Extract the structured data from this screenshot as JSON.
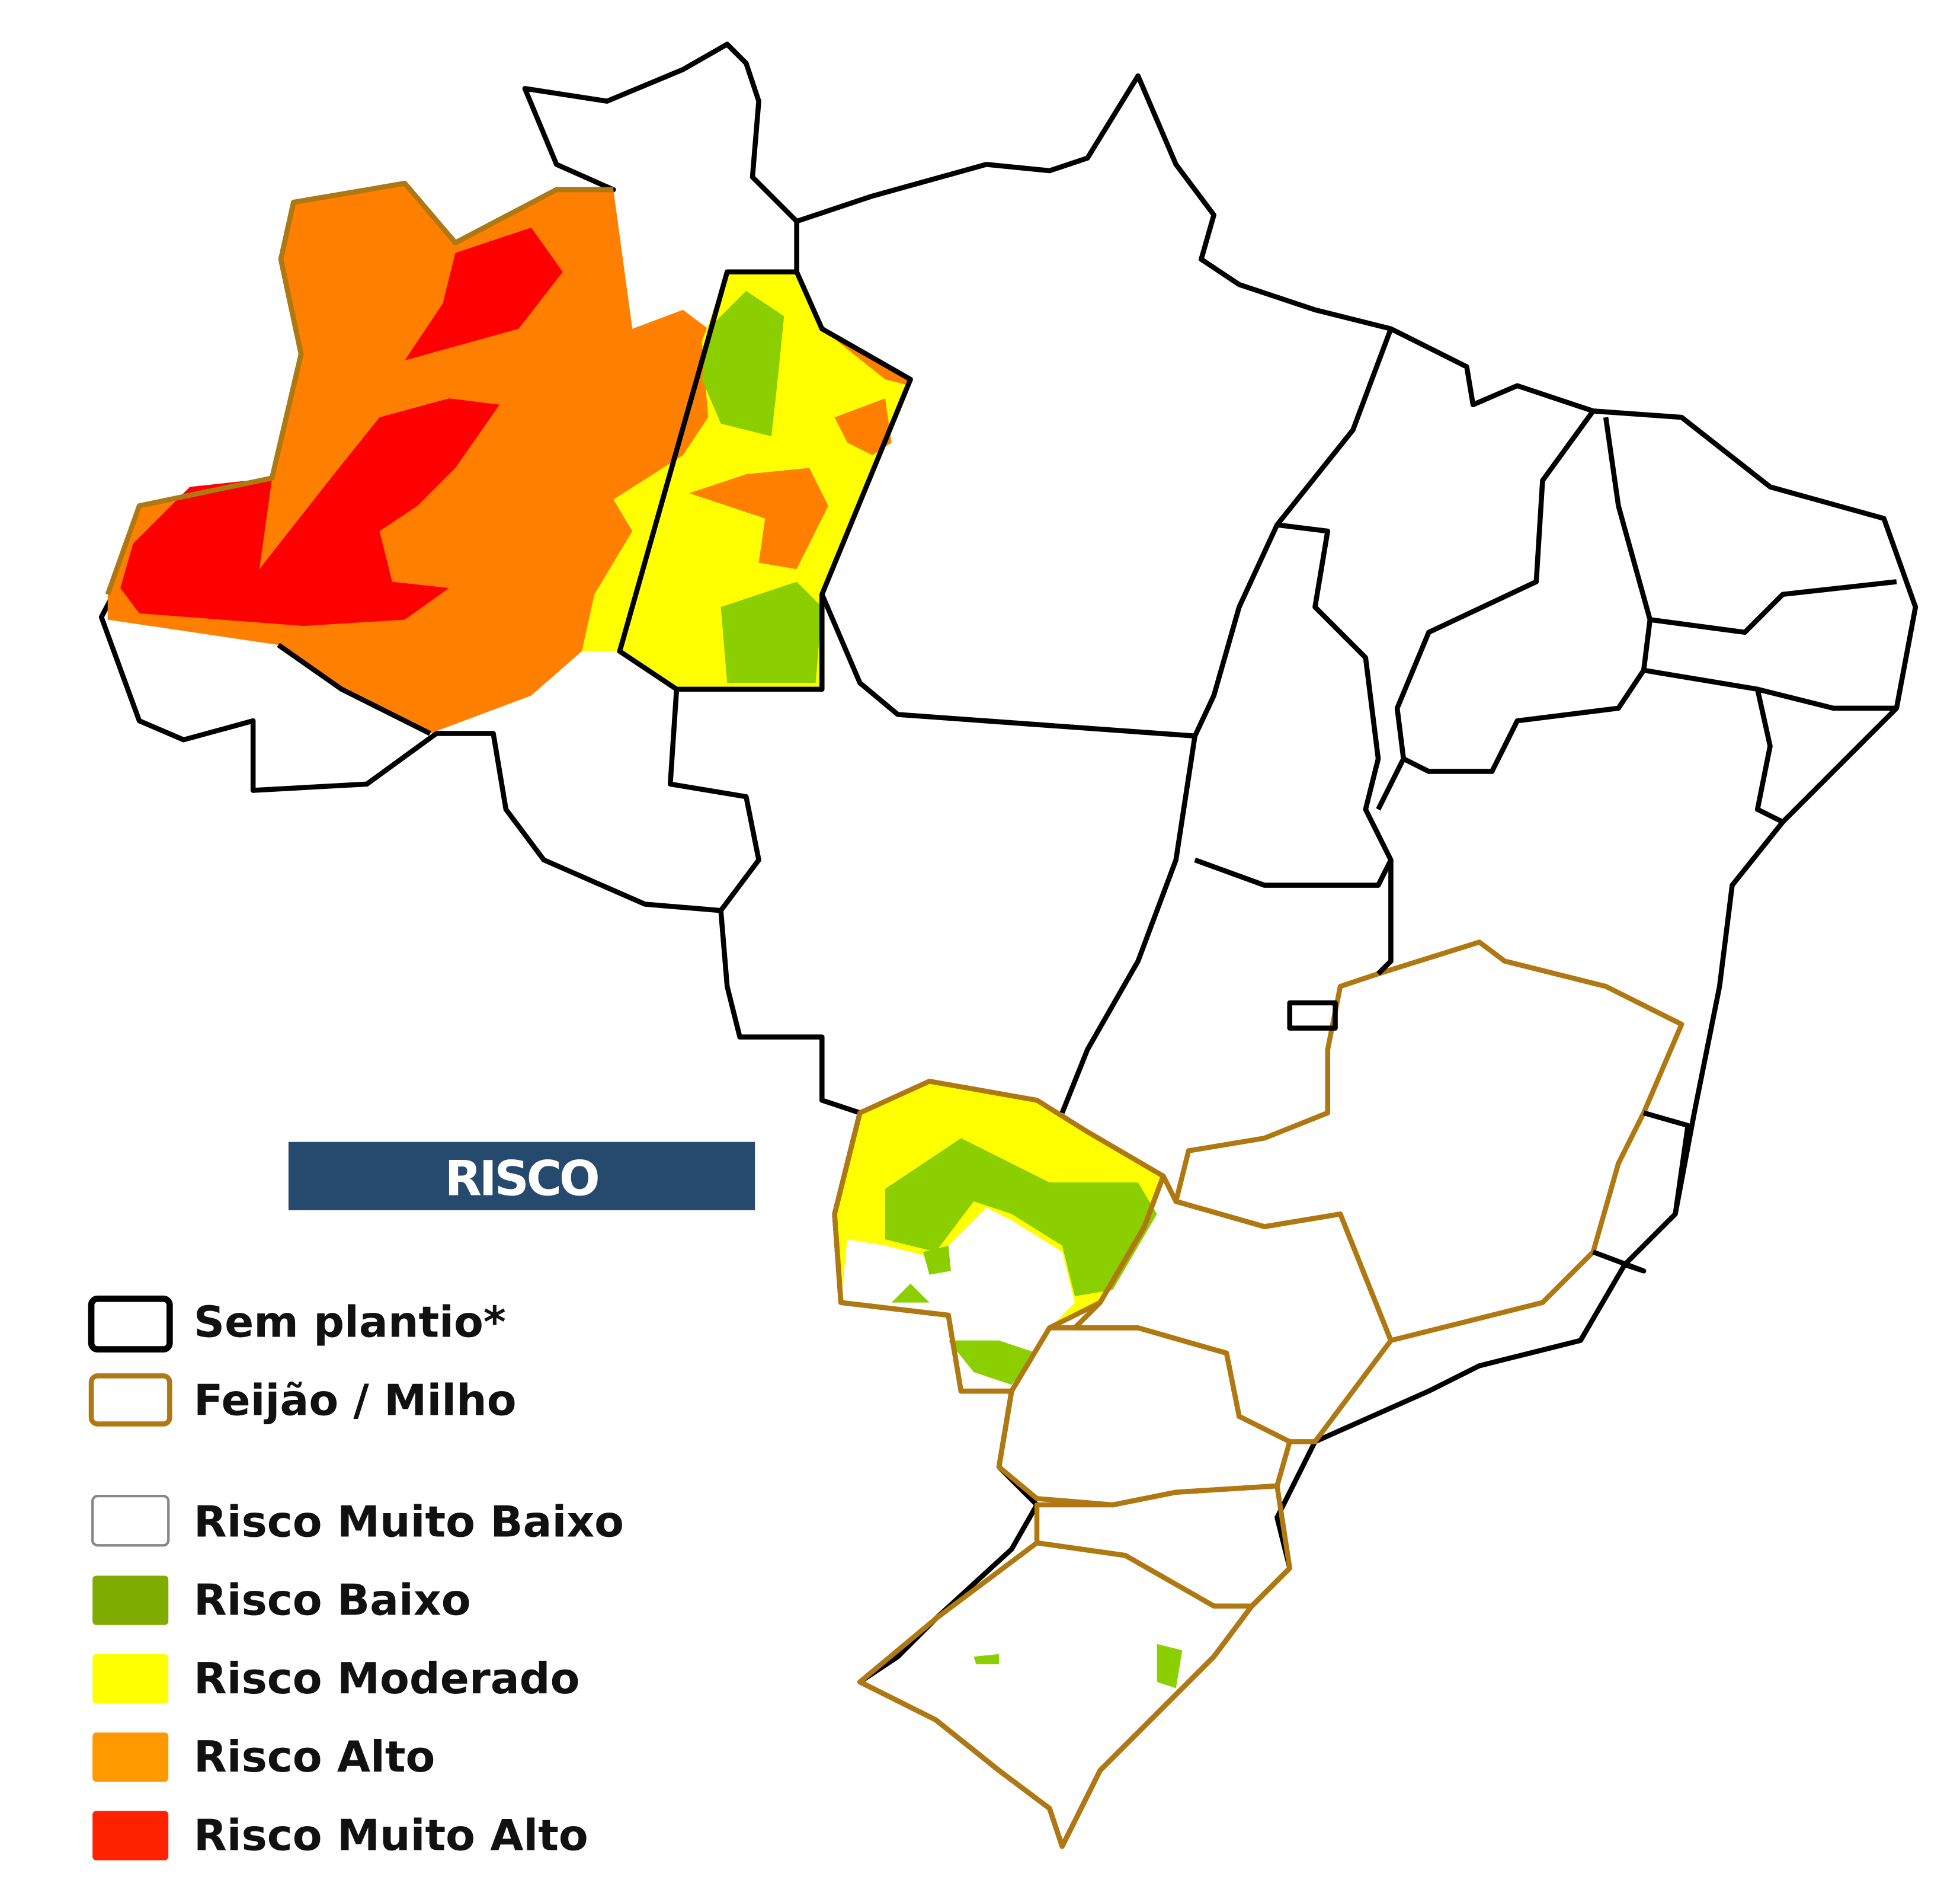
{
  "legend": {
    "title": "RISCO",
    "items": [
      {
        "label": "Sem plantio*",
        "fill": "#ffffff",
        "stroke": "#000000"
      },
      {
        "label": "Feijão / Milho",
        "fill": "#ffffff",
        "stroke": "#b07810"
      },
      {
        "label": "Risco Muito Baixo",
        "fill": "#ffffff",
        "stroke": "#888888"
      },
      {
        "label": "Risco Baixo",
        "fill": "#7fac00",
        "stroke": "#7fac00"
      },
      {
        "label": "Risco Moderado",
        "fill": "#ffff00",
        "stroke": "#ffff00"
      },
      {
        "label": "Risco Alto",
        "fill": "#ff9900",
        "stroke": "#ff9900"
      },
      {
        "label": "Risco Muito Alto",
        "fill": "#ff2200",
        "stroke": "#ff2200"
      }
    ]
  },
  "colors": {
    "title_bar": "#264a6e",
    "map_green": "#8ccf00",
    "map_yellow": "#ffff00",
    "map_orange": "#ff8000",
    "map_red": "#ff0000",
    "crop_outline": "#b07810",
    "no_planting_outline": "#000000"
  }
}
